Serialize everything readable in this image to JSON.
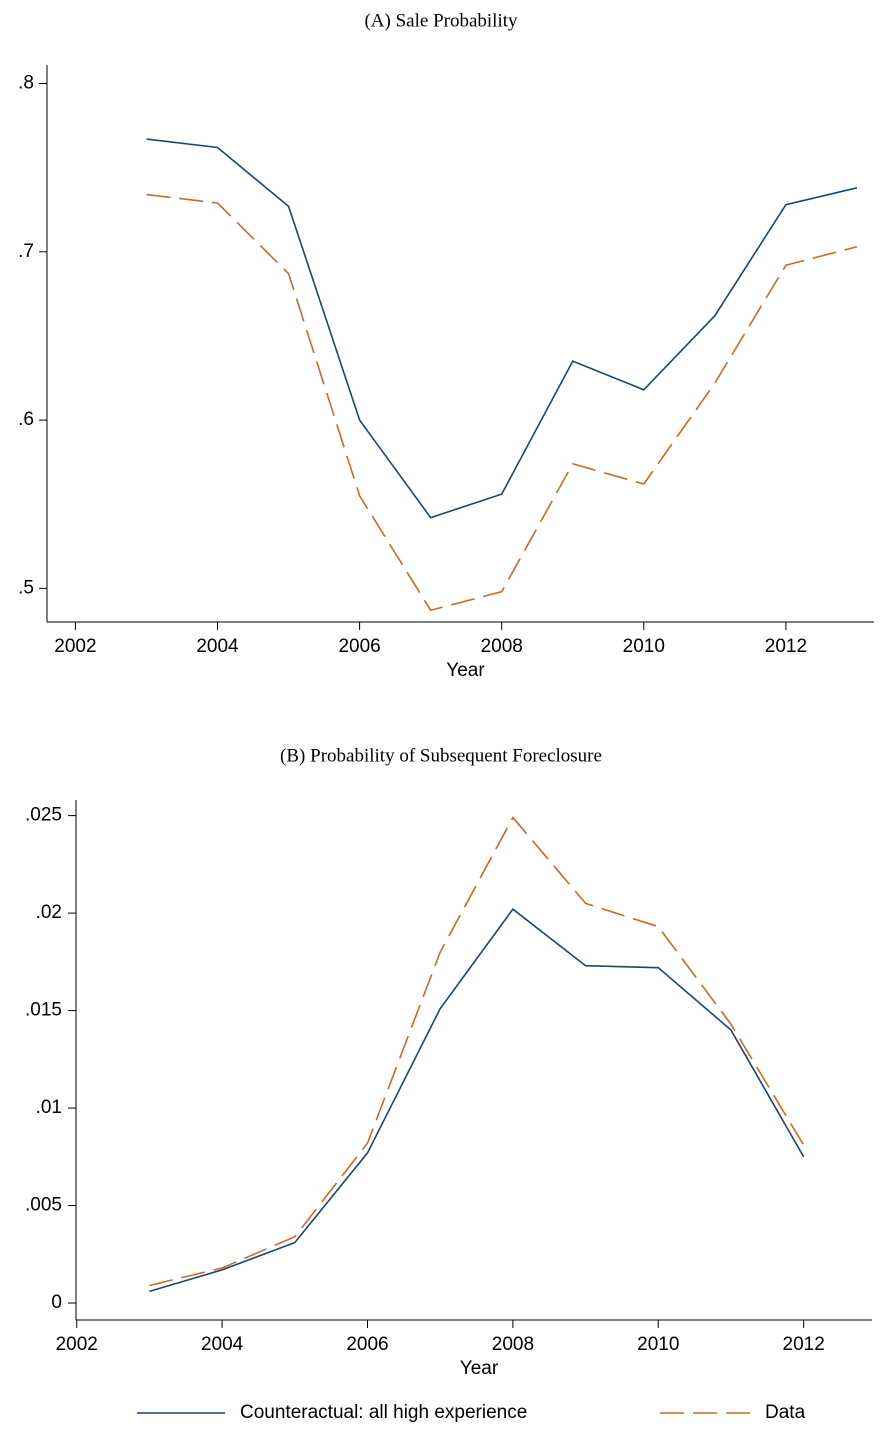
{
  "chart_data": [
    {
      "type": "line",
      "title": "(A)  Sale Probability",
      "x_label": "Year",
      "x": [
        2003,
        2004,
        2005,
        2006,
        2007,
        2008,
        2009,
        2010,
        2011,
        2012,
        2013
      ],
      "series": [
        {
          "name": "Counteractual: all high experience",
          "color": "#1a476f",
          "dash": false,
          "values": [
            0.767,
            0.762,
            0.727,
            0.6,
            0.542,
            0.556,
            0.635,
            0.618,
            0.662,
            0.728,
            0.738
          ]
        },
        {
          "name": "Data",
          "color": "#c86b25",
          "dash": true,
          "values": [
            0.734,
            0.729,
            0.687,
            0.555,
            0.487,
            0.498,
            0.574,
            0.562,
            0.622,
            0.692,
            0.703
          ]
        }
      ],
      "xlim": [
        2001.6,
        2013.24
      ],
      "xticks": [
        2002,
        2004,
        2006,
        2008,
        2010,
        2012
      ],
      "ylim": [
        0.48,
        0.811
      ],
      "yticks": [
        {
          "value": 0.5,
          "label": ".5"
        },
        {
          "value": 0.6,
          "label": ".6"
        },
        {
          "value": 0.7,
          "label": ".7"
        },
        {
          "value": 0.8,
          "label": ".8"
        }
      ]
    },
    {
      "type": "line",
      "title": "(B)  Probability of Subsequent Foreclosure",
      "x_label": "Year",
      "x": [
        2003,
        2004,
        2005,
        2006,
        2007,
        2008,
        2009,
        2010,
        2011,
        2012
      ],
      "series": [
        {
          "name": "Counteractual: all high experience",
          "color": "#1a476f",
          "dash": false,
          "values": [
            0.0006,
            0.0017,
            0.0031,
            0.0077,
            0.0151,
            0.0202,
            0.0173,
            0.0172,
            0.014,
            0.0075
          ]
        },
        {
          "name": "Data",
          "color": "#c86b25",
          "dash": true,
          "values": [
            0.0009,
            0.0018,
            0.0034,
            0.0082,
            0.018,
            0.0249,
            0.0205,
            0.0193,
            0.0143,
            0.0081
          ]
        }
      ],
      "xlim": [
        2001.99,
        2012.94
      ],
      "xticks": [
        2002,
        2004,
        2006,
        2008,
        2010,
        2012
      ],
      "ylim": [
        -0.00087,
        0.0258
      ],
      "yticks": [
        0,
        {
          "value": 0.005,
          "label": ".005"
        },
        {
          "value": 0.01,
          "label": ".01"
        },
        {
          "value": 0.015,
          "label": ".015"
        },
        {
          "value": 0.02,
          "label": ".02"
        },
        {
          "value": 0.025,
          "label": ".025"
        }
      ]
    }
  ]
}
